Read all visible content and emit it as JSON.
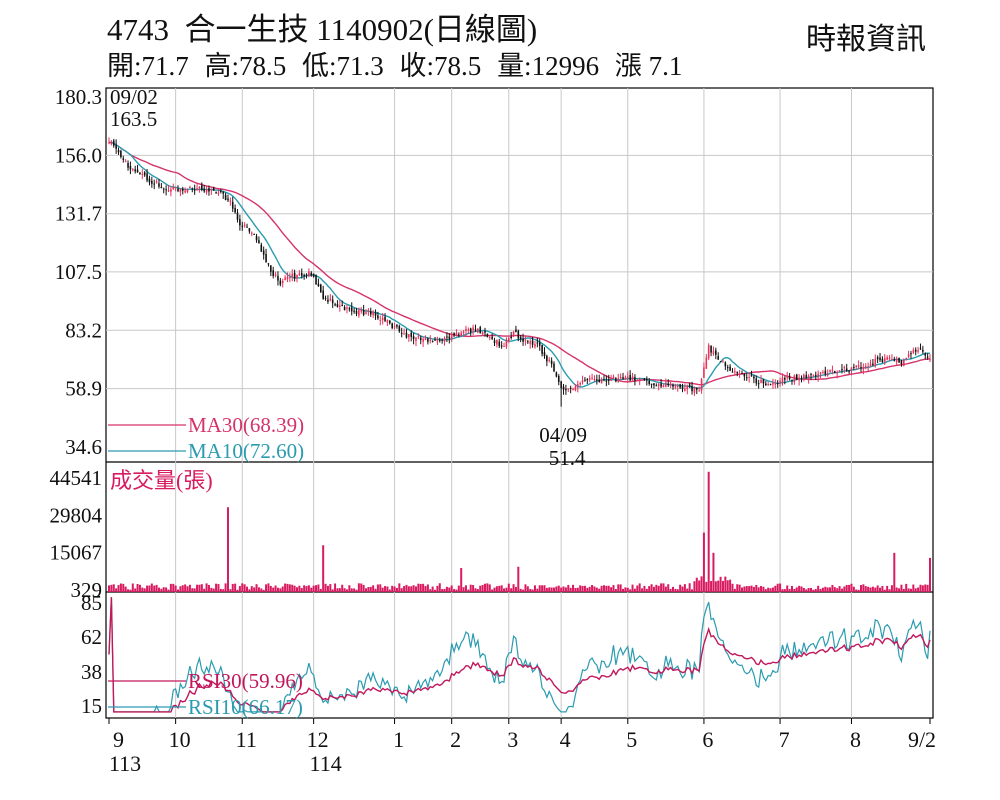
{
  "header": {
    "stock_code": "4743",
    "stock_name": "合一生技",
    "date_label": "1140902(日線圖)",
    "source": "時報資訊",
    "quote": {
      "open": "開:71.7",
      "high": "高:78.5",
      "low": "低:71.3",
      "close": "收:78.5",
      "volume": "量:12996",
      "change": "漲 7.1"
    }
  },
  "colors": {
    "up": "#e8325a",
    "down": "#111111",
    "ma30": "#d6336c",
    "ma10": "#2a9bb0",
    "volume": "#d81b60",
    "rsi30": "#c2185b",
    "rsi10": "#2a9bb0",
    "grid": "#c8c8c8",
    "border": "#000000"
  },
  "chart_data": [
    {
      "type": "candlestick",
      "panel": "price",
      "y_ticks": [
        "180.3",
        "156.0",
        "131.7",
        "107.5",
        "83.2",
        "58.9",
        "34.6"
      ],
      "ylim": [
        34.6,
        180.3
      ],
      "x_ticks": [
        "9",
        "10",
        "11",
        "12",
        "1",
        "2",
        "3",
        "4",
        "5",
        "6",
        "7",
        "8",
        "9/2"
      ],
      "year_labels": [
        "113",
        "114"
      ],
      "annotations": [
        {
          "date": "09/02",
          "value": "163.5",
          "note": "high"
        },
        {
          "date": "04/09",
          "value": "51.4",
          "note": "low"
        }
      ],
      "anchors": [
        [
          0,
          162
        ],
        [
          8,
          152
        ],
        [
          16,
          146
        ],
        [
          25,
          142
        ],
        [
          35,
          142
        ],
        [
          45,
          141
        ],
        [
          50,
          138
        ],
        [
          55,
          128
        ],
        [
          62,
          121
        ],
        [
          68,
          108
        ],
        [
          72,
          103
        ],
        [
          78,
          106
        ],
        [
          85,
          107
        ],
        [
          90,
          97
        ],
        [
          100,
          92
        ],
        [
          110,
          90
        ],
        [
          118,
          86
        ],
        [
          125,
          81
        ],
        [
          132,
          79
        ],
        [
          140,
          79
        ],
        [
          147,
          82
        ],
        [
          150,
          84
        ],
        [
          155,
          83
        ],
        [
          160,
          81
        ],
        [
          165,
          76
        ],
        [
          170,
          82
        ],
        [
          175,
          79
        ],
        [
          180,
          77
        ],
        [
          185,
          70
        ],
        [
          190,
          60
        ],
        [
          195,
          58
        ],
        [
          200,
          62
        ],
        [
          210,
          63
        ],
        [
          220,
          63
        ],
        [
          230,
          61
        ],
        [
          240,
          60
        ],
        [
          248,
          58
        ],
        [
          252,
          76
        ],
        [
          257,
          70
        ],
        [
          262,
          66
        ],
        [
          270,
          63
        ],
        [
          275,
          61
        ],
        [
          285,
          63
        ],
        [
          295,
          64
        ],
        [
          305,
          66
        ],
        [
          315,
          68
        ],
        [
          325,
          71
        ],
        [
          333,
          70
        ],
        [
          340,
          76
        ],
        [
          345,
          71
        ]
      ],
      "legend": [
        {
          "key": "ma30",
          "label": "MA30(68.39)"
        },
        {
          "key": "ma10",
          "label": "MA10(72.60)"
        }
      ]
    },
    {
      "type": "bar",
      "panel": "volume",
      "title": "成交量(張)",
      "y_ticks": [
        "44541",
        "29804",
        "15067",
        "329"
      ],
      "ylim": [
        329,
        44541
      ],
      "spikes": [
        {
          "day": 50,
          "value": 33000
        },
        {
          "day": 90,
          "value": 18000
        },
        {
          "day": 148,
          "value": 9000
        },
        {
          "day": 172,
          "value": 9500
        },
        {
          "day": 250,
          "value": 23000
        },
        {
          "day": 252,
          "value": 47000
        },
        {
          "day": 254,
          "value": 15000
        },
        {
          "day": 330,
          "value": 15000
        },
        {
          "day": 345,
          "value": 13000
        }
      ]
    },
    {
      "type": "line",
      "panel": "rsi",
      "y_ticks": [
        "85",
        "62",
        "38",
        "15"
      ],
      "ylim": [
        15,
        85
      ],
      "series": [
        {
          "key": "rsi30",
          "label": "RSI30(59.96)",
          "last": 59.96
        },
        {
          "key": "rsi10",
          "label": "RSI10(66.17)",
          "last": 66.17
        }
      ]
    }
  ]
}
